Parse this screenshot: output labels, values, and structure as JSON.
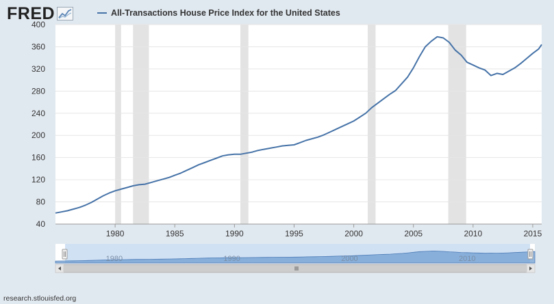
{
  "logo": {
    "text": "FRED",
    "icon": "trend-graph-icon"
  },
  "legend": {
    "label": "All-Transactions House Price Index for the United States",
    "color": "#4572a7"
  },
  "footer": {
    "source": "research.stlouisfed.org"
  },
  "colors": {
    "background": "#e1e9f0",
    "plot": "#ffffff",
    "recession": "#e3e3e3",
    "line": "#4572a7",
    "navigator_fill": "#6f9ed2"
  },
  "navigator": {
    "tick_labels": [
      "1980",
      "1990",
      "2000",
      "2010"
    ],
    "handle_icon": "grip-handle-icon"
  },
  "chart_data": {
    "type": "line",
    "title": "All-Transactions House Price Index for the United States",
    "xlabel": "",
    "ylabel": "",
    "xlim": [
      1975.0,
      2015.75
    ],
    "ylim": [
      40,
      400
    ],
    "yticks": [
      40,
      80,
      120,
      160,
      200,
      240,
      280,
      320,
      360,
      400
    ],
    "xticks": [
      1980,
      1985,
      1990,
      1995,
      2000,
      2005,
      2010,
      2015
    ],
    "grid": "horizontal",
    "recessions": [
      [
        1980.0,
        1980.5
      ],
      [
        1981.5,
        1982.83
      ],
      [
        1990.5,
        1991.17
      ],
      [
        2001.17,
        2001.83
      ],
      [
        2007.92,
        2009.42
      ]
    ],
    "series": [
      {
        "name": "All-Transactions House Price Index for the United States",
        "x": [
          1975.0,
          1975.5,
          1976.0,
          1976.5,
          1977.0,
          1977.5,
          1978.0,
          1978.5,
          1979.0,
          1979.5,
          1980.0,
          1980.5,
          1981.0,
          1981.5,
          1982.0,
          1982.5,
          1983.0,
          1983.5,
          1984.0,
          1984.5,
          1985.0,
          1985.5,
          1986.0,
          1986.5,
          1987.0,
          1987.5,
          1988.0,
          1988.5,
          1989.0,
          1989.5,
          1990.0,
          1990.5,
          1991.0,
          1991.5,
          1992.0,
          1992.5,
          1993.0,
          1993.5,
          1994.0,
          1994.5,
          1995.0,
          1995.5,
          1996.0,
          1996.5,
          1997.0,
          1997.5,
          1998.0,
          1998.5,
          1999.0,
          1999.5,
          2000.0,
          2000.5,
          2001.0,
          2001.5,
          2002.0,
          2002.5,
          2003.0,
          2003.5,
          2004.0,
          2004.5,
          2005.0,
          2005.5,
          2006.0,
          2006.5,
          2007.0,
          2007.5,
          2008.0,
          2008.5,
          2009.0,
          2009.5,
          2010.0,
          2010.5,
          2011.0,
          2011.5,
          2012.0,
          2012.5,
          2013.0,
          2013.5,
          2014.0,
          2014.5,
          2015.0,
          2015.5,
          2015.75
        ],
        "values": [
          60,
          62,
          64,
          67,
          70,
          74,
          79,
          85,
          91,
          96,
          100,
          103,
          106,
          109,
          111,
          112,
          115,
          118,
          121,
          124,
          128,
          132,
          137,
          142,
          147,
          151,
          155,
          159,
          163,
          165,
          166,
          166,
          168,
          170,
          173,
          175,
          177,
          179,
          181,
          182,
          183,
          187,
          191,
          194,
          197,
          201,
          206,
          211,
          216,
          221,
          226,
          233,
          240,
          250,
          258,
          266,
          274,
          281,
          293,
          305,
          322,
          342,
          360,
          370,
          378,
          376,
          368,
          354,
          345,
          332,
          327,
          322,
          318,
          308,
          312,
          310,
          316,
          322,
          330,
          339,
          348,
          356,
          364
        ]
      }
    ]
  }
}
